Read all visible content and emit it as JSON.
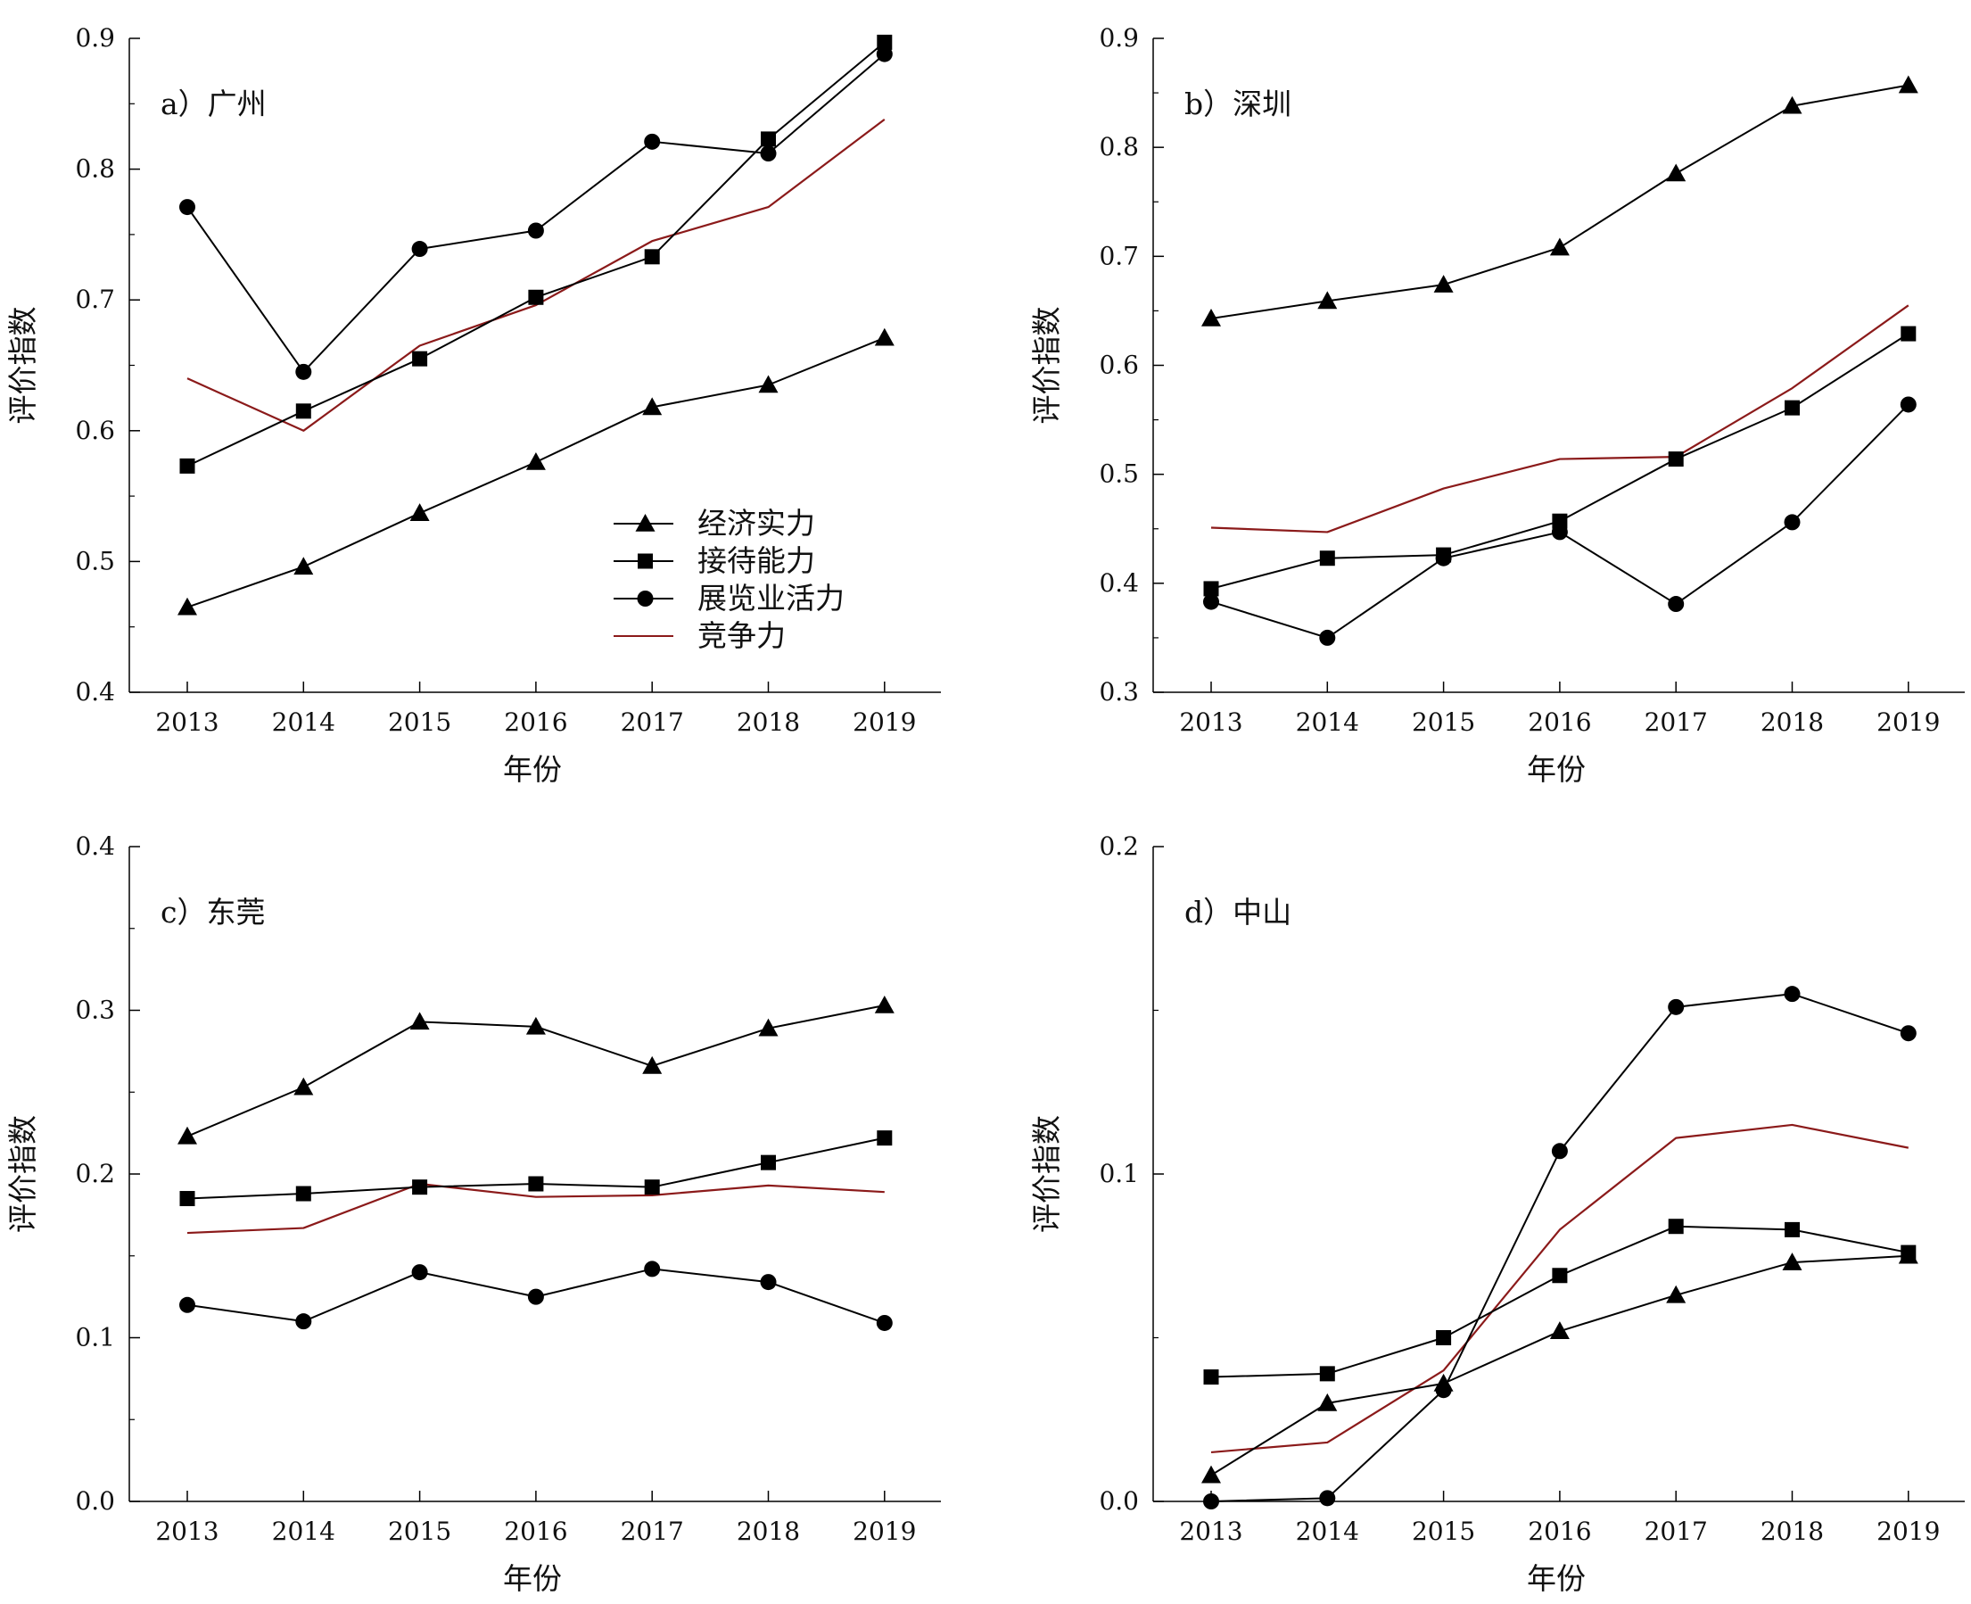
{
  "colors": {
    "black": "#000000",
    "competitiveness": "#8b1a1a"
  },
  "legend": {
    "items": [
      {
        "label": "经济实力",
        "marker": "triangle",
        "color": "#000000"
      },
      {
        "label": "接待能力",
        "marker": "square",
        "color": "#000000"
      },
      {
        "label": "展览业活力",
        "marker": "circle",
        "color": "#000000"
      },
      {
        "label": "竞争力",
        "marker": "none",
        "color": "#8b1a1a"
      }
    ]
  },
  "chart_data": [
    {
      "type": "line",
      "panel_label": "a）广州",
      "xlabel": "年份",
      "ylabel": "评价指数",
      "x": [
        2013,
        2014,
        2015,
        2016,
        2017,
        2018,
        2019
      ],
      "ylim": [
        0.4,
        0.9
      ],
      "yticks": [
        "0.4",
        "0.5",
        "0.6",
        "0.7",
        "0.8",
        "0.9"
      ],
      "grid": false,
      "legend_position": "center",
      "series": [
        {
          "name": "经济实力",
          "values": [
            0.465,
            0.496,
            0.537,
            0.576,
            0.618,
            0.635,
            0.671
          ]
        },
        {
          "name": "接待能力",
          "values": [
            0.573,
            0.615,
            0.655,
            0.702,
            0.733,
            0.823,
            0.897
          ]
        },
        {
          "name": "展览业活力",
          "values": [
            0.771,
            0.645,
            0.739,
            0.753,
            0.821,
            0.812,
            0.888
          ]
        },
        {
          "name": "竞争力",
          "values": [
            0.64,
            0.6,
            0.665,
            0.696,
            0.745,
            0.771,
            0.838
          ]
        }
      ]
    },
    {
      "type": "line",
      "panel_label": "b）深圳",
      "xlabel": "年份",
      "ylabel": "评价指数",
      "x": [
        2013,
        2014,
        2015,
        2016,
        2017,
        2018,
        2019
      ],
      "ylim": [
        0.3,
        0.9
      ],
      "yticks": [
        "0.3",
        "0.4",
        "0.5",
        "0.6",
        "0.7",
        "0.8",
        "0.9"
      ],
      "grid": false,
      "series": [
        {
          "name": "经济实力",
          "values": [
            0.643,
            0.659,
            0.674,
            0.708,
            0.776,
            0.838,
            0.857
          ]
        },
        {
          "name": "接待能力",
          "values": [
            0.395,
            0.423,
            0.426,
            0.457,
            0.514,
            0.561,
            0.629
          ]
        },
        {
          "name": "展览业活力",
          "values": [
            0.383,
            0.35,
            0.423,
            0.447,
            0.381,
            0.456,
            0.564
          ]
        },
        {
          "name": "竞争力",
          "values": [
            0.451,
            0.447,
            0.487,
            0.514,
            0.516,
            0.579,
            0.655
          ]
        }
      ]
    },
    {
      "type": "line",
      "panel_label": "c）东莞",
      "xlabel": "年份",
      "ylabel": "评价指数",
      "x": [
        2013,
        2014,
        2015,
        2016,
        2017,
        2018,
        2019
      ],
      "ylim": [
        0.0,
        0.4
      ],
      "yticks": [
        "0.0",
        "0.1",
        "0.2",
        "0.3",
        "0.4"
      ],
      "grid": false,
      "series": [
        {
          "name": "经济实力",
          "values": [
            0.223,
            0.253,
            0.293,
            0.29,
            0.266,
            0.289,
            0.303
          ]
        },
        {
          "name": "接待能力",
          "values": [
            0.185,
            0.188,
            0.192,
            0.194,
            0.192,
            0.207,
            0.222
          ]
        },
        {
          "name": "展览业活力",
          "values": [
            0.12,
            0.11,
            0.14,
            0.125,
            0.142,
            0.134,
            0.109
          ]
        },
        {
          "name": "竞争力",
          "values": [
            0.164,
            0.167,
            0.194,
            0.186,
            0.187,
            0.193,
            0.189
          ]
        }
      ]
    },
    {
      "type": "line",
      "panel_label": "d）中山",
      "xlabel": "年份",
      "ylabel": "评价指数",
      "x": [
        2013,
        2014,
        2015,
        2016,
        2017,
        2018,
        2019
      ],
      "ylim": [
        0.0,
        0.2
      ],
      "yticks": [
        "0.0",
        "0.1",
        "0.2"
      ],
      "grid": false,
      "series": [
        {
          "name": "经济实力",
          "values": [
            0.008,
            0.03,
            0.036,
            0.052,
            0.063,
            0.073,
            0.075
          ]
        },
        {
          "name": "接待能力",
          "values": [
            0.038,
            0.039,
            0.05,
            0.069,
            0.084,
            0.083,
            0.076
          ]
        },
        {
          "name": "展览业活力",
          "values": [
            0.0,
            0.001,
            0.034,
            0.107,
            0.151,
            0.155,
            0.143
          ]
        },
        {
          "name": "竞争力",
          "values": [
            0.015,
            0.018,
            0.04,
            0.083,
            0.111,
            0.115,
            0.108
          ]
        }
      ]
    }
  ]
}
